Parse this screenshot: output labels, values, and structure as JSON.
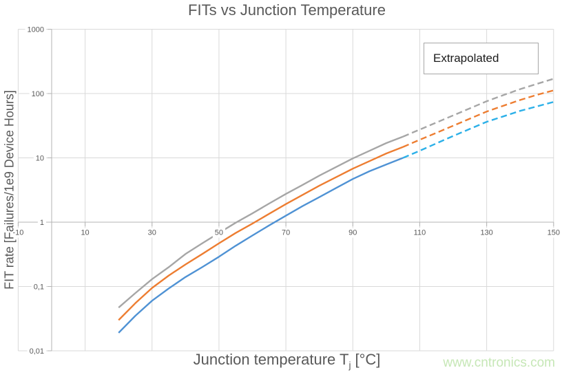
{
  "title": "FITs vs Junction Temperature",
  "legend": {
    "label": "Extrapolated"
  },
  "watermark": {
    "text": "www.cntronics.com",
    "color": "#c6e7b6"
  },
  "axis_titles": {
    "y": "FIT rate [Failures/1e9 Device Hours]",
    "x_main": "Junction temperature T",
    "x_sub": "j",
    "x_unit": "[°C]"
  },
  "colors": {
    "title_text": "#595959",
    "tick_text": "#595959",
    "gridline": "#d9d9d9",
    "axis_line": "#b3b3b3",
    "legend_border": "#a6a6a6",
    "series_gray": "#a6a6a6",
    "series_orange": "#ed7d31",
    "series_blue_solid": "#4f92d4",
    "series_blue_dashed": "#2cb0e8"
  },
  "chart_data": {
    "type": "line",
    "title": "FITs vs Junction Temperature",
    "xlabel": "Junction temperature Tj [°C]",
    "ylabel": "FIT rate [Failures/1e9 Device Hours]",
    "grid": true,
    "legend_entries": [
      "Extrapolated"
    ],
    "legend_position": "top-right",
    "x_axis": {
      "min": -10,
      "max": 150,
      "ticks": [
        -10,
        10,
        30,
        50,
        70,
        90,
        110,
        130,
        150
      ],
      "tick_labels": [
        "-10",
        "10",
        "30",
        "50",
        "70",
        "90",
        "110",
        "130",
        "150"
      ]
    },
    "y_axis": {
      "scale": "log",
      "min": 0.01,
      "max": 1000,
      "ticks": [
        1000,
        100,
        10,
        1,
        0.1,
        0.01
      ],
      "tick_labels": [
        "1000",
        "100",
        "10",
        "1",
        "0,1",
        "0,01"
      ]
    },
    "series": [
      {
        "name": "gray-measured",
        "color": "#a6a6a6",
        "style": "solid",
        "x": [
          20,
          25,
          30,
          35,
          40,
          45,
          50,
          55,
          60,
          65,
          70,
          75,
          80,
          85,
          90,
          95,
          100,
          105
        ],
        "y": [
          0.047,
          0.079,
          0.13,
          0.2,
          0.32,
          0.47,
          0.68,
          0.98,
          1.37,
          1.95,
          2.75,
          3.8,
          5.3,
          7.2,
          9.8,
          12.9,
          17,
          21.4
        ]
      },
      {
        "name": "gray-extrapolated",
        "color": "#a6a6a6",
        "style": "dashed",
        "x": [
          105,
          110,
          115,
          120,
          125,
          130,
          135,
          140,
          145,
          150
        ],
        "y": [
          21.4,
          27.5,
          35.5,
          45.7,
          58.9,
          75.9,
          94.4,
          117,
          141,
          170
        ]
      },
      {
        "name": "orange-measured",
        "color": "#ed7d31",
        "style": "solid",
        "x": [
          20,
          25,
          30,
          35,
          40,
          45,
          50,
          55,
          60,
          65,
          70,
          75,
          80,
          85,
          90,
          95,
          100,
          105
        ],
        "y": [
          0.03,
          0.055,
          0.095,
          0.148,
          0.22,
          0.32,
          0.47,
          0.68,
          0.95,
          1.35,
          1.91,
          2.66,
          3.7,
          5,
          6.8,
          8.9,
          11.7,
          14.8
        ]
      },
      {
        "name": "orange-extrapolated",
        "color": "#ed7d31",
        "style": "dashed",
        "x": [
          105,
          110,
          115,
          120,
          125,
          130,
          135,
          140,
          145,
          150
        ],
        "y": [
          14.8,
          19.1,
          24.5,
          31.6,
          40.7,
          52.5,
          64.6,
          79.4,
          95.5,
          112
        ]
      },
      {
        "name": "blue-measured",
        "color": "#4f92d4",
        "style": "solid",
        "x": [
          20,
          25,
          30,
          35,
          40,
          45,
          50,
          55,
          60,
          65,
          70,
          75,
          80,
          85,
          90,
          95,
          100,
          105
        ],
        "y": [
          0.019,
          0.035,
          0.06,
          0.093,
          0.14,
          0.2,
          0.29,
          0.43,
          0.62,
          0.89,
          1.26,
          1.78,
          2.45,
          3.4,
          4.7,
          6.2,
          7.9,
          10
        ]
      },
      {
        "name": "blue-extrapolated",
        "color": "#2cb0e8",
        "style": "dashed",
        "x": [
          105,
          110,
          115,
          120,
          125,
          130,
          135,
          140,
          145,
          150
        ],
        "y": [
          10,
          12.9,
          16.8,
          21.9,
          28.2,
          36.3,
          44.2,
          53.7,
          63.1,
          74.1
        ]
      }
    ]
  }
}
